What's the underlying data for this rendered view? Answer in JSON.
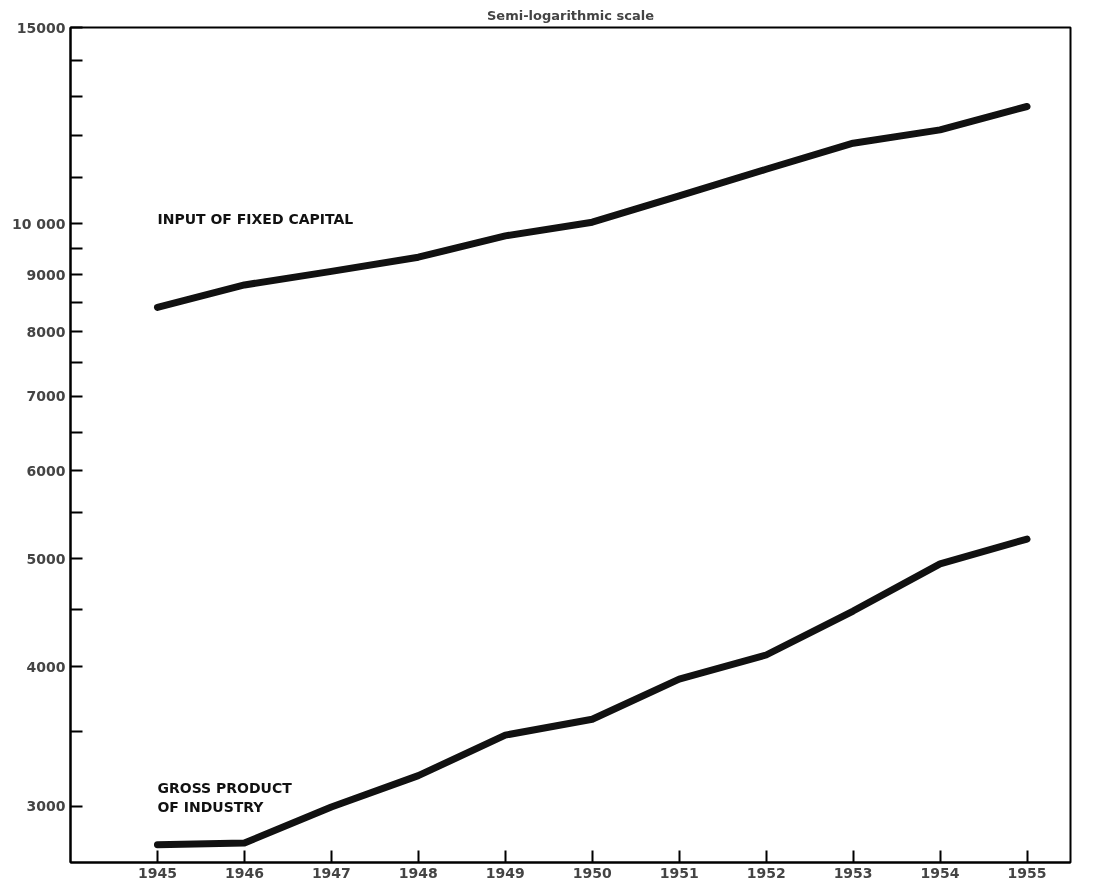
{
  "chart_data": {
    "type": "line",
    "title": "Semi-logarithmic scale",
    "log": "y",
    "grid": false,
    "legend": false,
    "marker": "none",
    "line_style": "solid",
    "x": [
      1945,
      1946,
      1947,
      1948,
      1949,
      1950,
      1951,
      1952,
      1953,
      1954,
      1955
    ],
    "xlim": [
      1944,
      1955.5
    ],
    "xticks": [
      1945,
      1946,
      1947,
      1948,
      1949,
      1950,
      1951,
      1952,
      1953,
      1954,
      1955
    ],
    "ylim": [
      2670,
      15000
    ],
    "yticks": [
      3000,
      {
        "value": 3500,
        "label": null
      },
      4000,
      {
        "value": 4500,
        "label": null
      },
      5000,
      {
        "value": 5500,
        "label": null
      },
      6000,
      {
        "value": 6500,
        "label": null
      },
      7000,
      {
        "value": 7500,
        "label": null
      },
      8000,
      {
        "value": 8500,
        "label": null
      },
      9000,
      {
        "value": 9500,
        "label": null
      },
      {
        "value": 10000,
        "label": "10 000"
      },
      {
        "value": 11000,
        "label": null
      },
      {
        "value": 12000,
        "label": null
      },
      {
        "value": 13000,
        "label": null
      },
      {
        "value": 14000,
        "label": null
      },
      15000
    ],
    "series": [
      {
        "name": "INPUT OF FIXED CAPITAL",
        "color": "#111111",
        "values": [
          8410,
          8810,
          9060,
          9330,
          9750,
          10030,
          10590,
          11190,
          11810,
          12140,
          12740
        ]
      },
      {
        "name": "GROSS PRODUCT\nOF  INDUSTRY",
        "color": "#111111",
        "values": [
          2770,
          2780,
          2995,
          3195,
          3474,
          3590,
          3900,
          4100,
          4490,
          4950,
          5210
        ]
      }
    ]
  }
}
